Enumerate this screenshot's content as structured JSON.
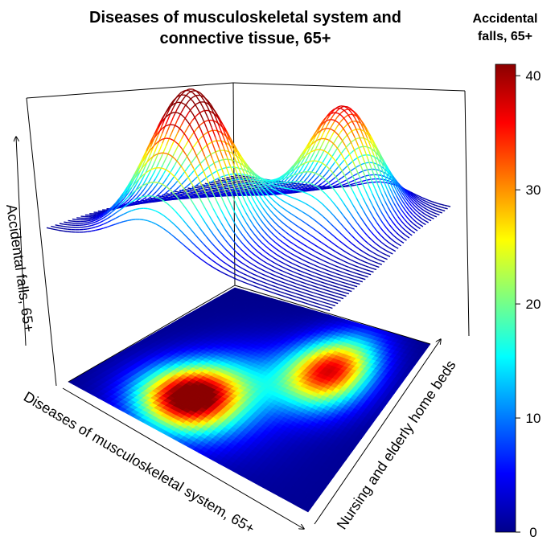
{
  "chart_data": {
    "type": "surface3d",
    "title_line1": "Diseases of musculoskeletal system and",
    "title_line2": "connective tissue, 65+",
    "xlabel": "Diseases of musculoskeletal system, 65+",
    "ylabel": "Nursing and elderly home beds",
    "zlabel": "Accidental falls, 65+",
    "legend": {
      "title_line1": "Accidental",
      "title_line2": "falls, 65+",
      "range": [
        0,
        41
      ],
      "ticks": [
        {
          "value": 0,
          "label": "0"
        },
        {
          "value": 10,
          "label": "10"
        },
        {
          "value": 20,
          "label": "20"
        },
        {
          "value": 30,
          "label": "30"
        },
        {
          "value": 40,
          "label": "40"
        }
      ],
      "colormap": [
        "#00008b",
        "#0000ff",
        "#007fff",
        "#00ffff",
        "#7fff7f",
        "#ffff00",
        "#ff7f00",
        "#ff0000",
        "#8b0000"
      ],
      "placement": "right"
    },
    "peaks": [
      {
        "x": 0.35,
        "y": 0.25,
        "height": 41
      },
      {
        "x": 0.7,
        "y": 0.7,
        "height": 36
      }
    ],
    "ridge": {
      "x": 0.45,
      "y": 0.4,
      "height": 9
    },
    "grid": false,
    "projection": "surface with projected image at base"
  }
}
